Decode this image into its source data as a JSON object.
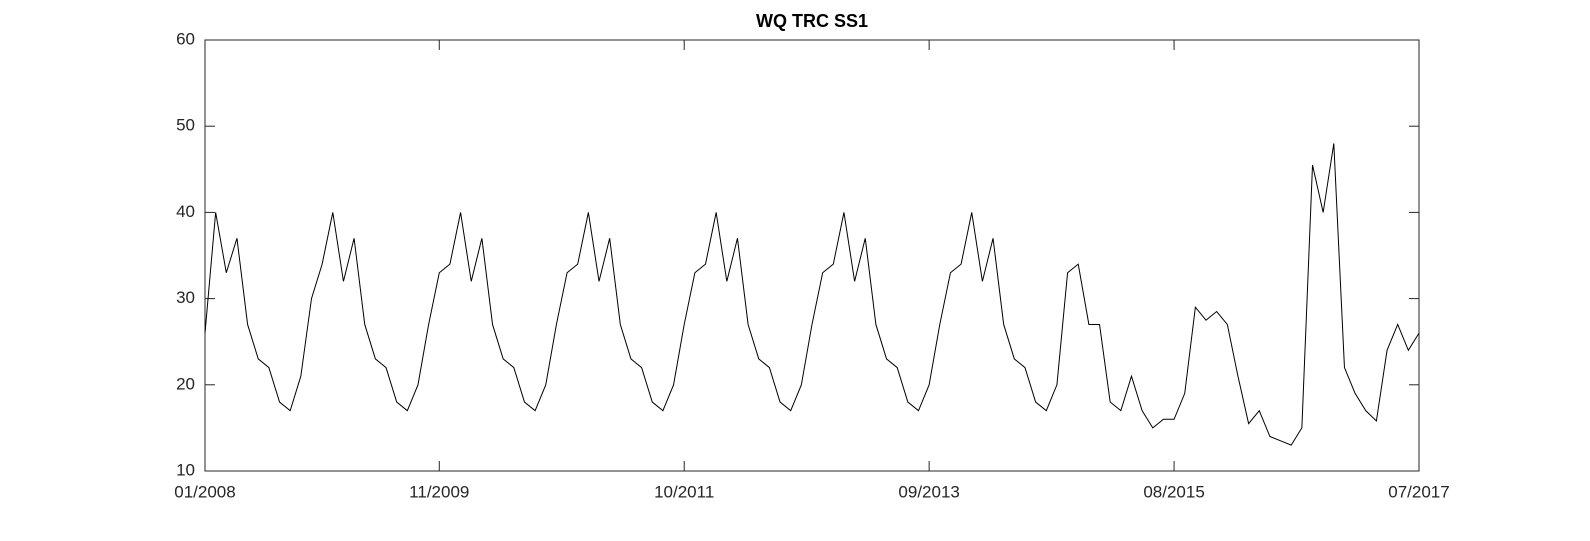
{
  "chart_data": {
    "type": "line",
    "title": "WQ TRC SS1",
    "color": "#000000",
    "x": [
      "01/2008",
      "02/2008",
      "03/2008",
      "04/2008",
      "05/2008",
      "06/2008",
      "07/2008",
      "08/2008",
      "09/2008",
      "10/2008",
      "11/2008",
      "12/2008",
      "01/2009",
      "02/2009",
      "03/2009",
      "04/2009",
      "05/2009",
      "06/2009",
      "07/2009",
      "08/2009",
      "09/2009",
      "10/2009",
      "11/2009",
      "12/2009",
      "01/2010",
      "02/2010",
      "03/2010",
      "04/2010",
      "05/2010",
      "06/2010",
      "07/2010",
      "08/2010",
      "09/2010",
      "10/2010",
      "11/2010",
      "12/2010",
      "01/2011",
      "02/2011",
      "03/2011",
      "04/2011",
      "05/2011",
      "06/2011",
      "07/2011",
      "08/2011",
      "09/2011",
      "10/2011",
      "11/2011",
      "12/2011",
      "01/2012",
      "02/2012",
      "03/2012",
      "04/2012",
      "05/2012",
      "06/2012",
      "07/2012",
      "08/2012",
      "09/2012",
      "10/2012",
      "11/2012",
      "12/2012",
      "01/2013",
      "02/2013",
      "03/2013",
      "04/2013",
      "05/2013",
      "06/2013",
      "07/2013",
      "08/2013",
      "09/2013",
      "10/2013",
      "11/2013",
      "12/2013",
      "01/2014",
      "02/2014",
      "03/2014",
      "04/2014",
      "05/2014",
      "06/2014",
      "07/2014",
      "08/2014",
      "09/2014",
      "10/2014",
      "11/2014",
      "12/2014",
      "01/2015",
      "02/2015",
      "03/2015",
      "04/2015",
      "05/2015",
      "06/2015",
      "07/2015",
      "08/2015",
      "09/2015",
      "10/2015",
      "11/2015",
      "12/2015",
      "01/2016",
      "02/2016",
      "03/2016",
      "04/2016",
      "05/2016",
      "06/2016",
      "07/2016",
      "08/2016",
      "09/2016",
      "10/2016",
      "11/2016",
      "12/2016",
      "01/2017",
      "02/2017",
      "03/2017",
      "04/2017",
      "05/2017",
      "06/2017",
      "07/2017"
    ],
    "values": [
      26,
      40,
      33,
      37,
      27,
      23,
      22,
      18,
      17,
      21,
      30,
      34,
      40,
      32,
      37,
      27,
      23,
      22,
      18,
      17,
      20,
      27,
      33,
      34,
      40,
      32,
      37,
      27,
      23,
      22,
      18,
      17,
      20,
      27,
      33,
      34,
      40,
      32,
      37,
      27,
      23,
      22,
      18,
      17,
      20,
      27,
      33,
      34,
      40,
      32,
      37,
      27,
      23,
      22,
      18,
      17,
      20,
      27,
      33,
      34,
      40,
      32,
      37,
      27,
      23,
      22,
      18,
      17,
      20,
      27,
      33,
      34,
      40,
      32,
      37,
      27,
      23,
      22,
      18,
      17,
      20,
      33,
      34,
      27,
      27,
      18,
      17,
      21,
      17,
      15,
      16,
      16,
      19,
      29,
      27.5,
      28.5,
      27,
      21,
      15.5,
      17,
      14,
      13.5,
      13,
      15,
      45.5,
      40,
      48,
      22,
      19,
      17,
      15.8,
      24,
      27,
      24,
      26
    ],
    "xticks": [
      "01/2008",
      "11/2009",
      "10/2011",
      "09/2013",
      "08/2015",
      "07/2017"
    ],
    "ylim": [
      10,
      60
    ],
    "yticks": [
      10,
      20,
      30,
      40,
      50,
      60
    ]
  }
}
